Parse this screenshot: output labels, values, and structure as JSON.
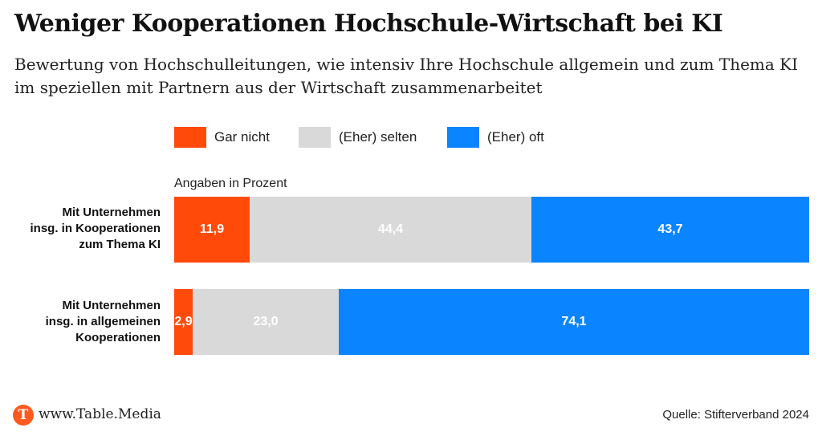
{
  "header": {
    "title": "Weniger Kooperationen Hochschule-Wirtschaft bei KI",
    "subtitle": "Bewertung von Hochschulleitungen, wie intensiv Ihre Hochschule allgemein und zum Thema KI im speziellen mit Partnern aus der Wirtschaft zusammenarbeitet"
  },
  "legend": {
    "items": [
      {
        "label": "Gar nicht",
        "color": "#ff4a0a"
      },
      {
        "label": "(Eher) selten",
        "color": "#d9d9d9"
      },
      {
        "label": "(Eher) oft",
        "color": "#0a84ff"
      }
    ]
  },
  "unit_note": "Angaben in Prozent",
  "rows": [
    {
      "label_lines": [
        "Mit Unternehmen",
        "insg. in Kooperationen",
        "zum Thema KI"
      ]
    },
    {
      "label_lines": [
        "Mit Unternehmen",
        "insg. in allgemeinen",
        "Kooperationen"
      ]
    }
  ],
  "chart_data": {
    "type": "bar",
    "orientation": "horizontal",
    "stacked": true,
    "categories": [
      "Mit Unternehmen insg. in Kooperationen zum Thema KI",
      "Mit Unternehmen insg. in allgemeinen Kooperationen"
    ],
    "series": [
      {
        "name": "Gar nicht",
        "values": [
          11.9,
          2.9
        ],
        "labels": [
          "11,9",
          "2,9"
        ],
        "color": "#ff4a0a"
      },
      {
        "name": "(Eher) selten",
        "values": [
          44.4,
          23.0
        ],
        "labels": [
          "44,4",
          "23,0"
        ],
        "color": "#d9d9d9"
      },
      {
        "name": "(Eher) oft",
        "values": [
          43.7,
          74.1
        ],
        "labels": [
          "43,7",
          "74,1"
        ],
        "color": "#0a84ff"
      }
    ],
    "unit": "Prozent",
    "legend_position": "top",
    "grid": false
  },
  "footer": {
    "logo_letter": "T",
    "site": "www.Table.Media",
    "source": "Quelle: Stifterverband 2024"
  }
}
